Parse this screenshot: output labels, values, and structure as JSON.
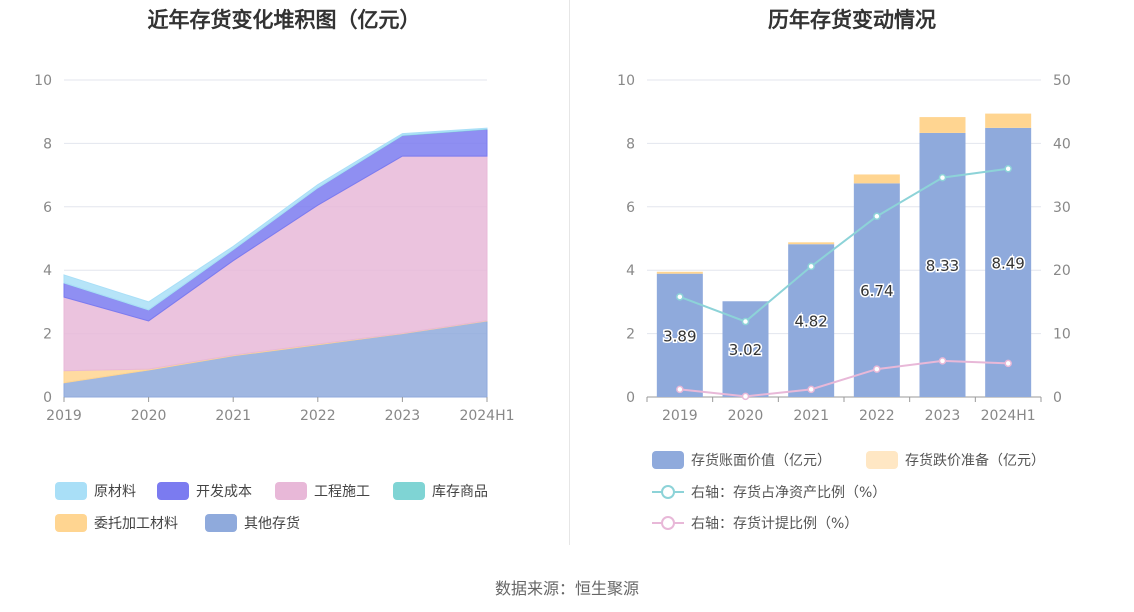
{
  "source": "数据来源：恒生聚源",
  "chart_data": [
    {
      "type": "area",
      "stacked": true,
      "title": "近年存货变化堆积图（亿元）",
      "categories": [
        "2019",
        "2020",
        "2021",
        "2022",
        "2023",
        "2024H1"
      ],
      "y_ticks": [
        "0",
        "2",
        "4",
        "6",
        "8",
        "10"
      ],
      "ylim": [
        0,
        10
      ],
      "grid": true,
      "legend_position": "bottom",
      "series": [
        {
          "name": "其他存货",
          "color": "#8FAADC",
          "values": [
            0.45,
            0.85,
            1.3,
            1.65,
            2.0,
            2.4
          ]
        },
        {
          "name": "委托加工材料",
          "color": "#FFD591",
          "values": [
            0.38,
            0.03,
            0.02,
            0.02,
            0.01,
            0.01
          ]
        },
        {
          "name": "工程施工",
          "color": "#E8B8D8",
          "values": [
            2.32,
            1.52,
            2.98,
            4.38,
            5.59,
            5.19
          ]
        },
        {
          "name": "开发成本",
          "color": "#7B7BF0",
          "values": [
            0.45,
            0.35,
            0.35,
            0.55,
            0.65,
            0.85
          ]
        },
        {
          "name": "库存商品",
          "color": "#7FD4D4",
          "values": [
            0.0,
            0.0,
            0.0,
            0.0,
            0.01,
            0.01
          ]
        },
        {
          "name": "原材料",
          "color": "#A9DFF7",
          "values": [
            0.25,
            0.25,
            0.1,
            0.1,
            0.05,
            0.02
          ]
        }
      ],
      "legend": [
        {
          "name": "原材料",
          "color": "#A9DFF7"
        },
        {
          "name": "开发成本",
          "color": "#7B7BF0"
        },
        {
          "name": "工程施工",
          "color": "#E8B8D8"
        },
        {
          "name": "库存商品",
          "color": "#7FD4D4"
        },
        {
          "name": "委托加工材料",
          "color": "#FFD591"
        },
        {
          "name": "其他存货",
          "color": "#8FAADC"
        }
      ]
    },
    {
      "type": "bar",
      "stacked": true,
      "title": "历年存货变动情况",
      "categories": [
        "2019",
        "2020",
        "2021",
        "2022",
        "2023",
        "2024H1"
      ],
      "y_ticks": [
        "0",
        "2",
        "4",
        "6",
        "8",
        "10"
      ],
      "y2_ticks": [
        "0",
        "10",
        "20",
        "30",
        "40",
        "50"
      ],
      "ylim": [
        0,
        10
      ],
      "y2lim": [
        0,
        50
      ],
      "grid": true,
      "legend_position": "bottom",
      "series": [
        {
          "name": "存货账面价值（亿元）",
          "color": "#8FAADC",
          "values": [
            3.89,
            3.02,
            4.82,
            6.74,
            8.33,
            8.49
          ],
          "labels": [
            "3.89",
            "3.02",
            "4.82",
            "6.74",
            "8.33",
            "8.49"
          ]
        },
        {
          "name": "存货跌价准备（亿元）",
          "color": "#FFD591",
          "values": [
            0.06,
            0.0,
            0.06,
            0.28,
            0.5,
            0.45
          ]
        }
      ],
      "lines": [
        {
          "name": "右轴：存货占净资产比例（%）",
          "color": "#8DD3D8",
          "axis": "right",
          "values": [
            15.8,
            11.9,
            20.6,
            28.5,
            34.6,
            36.0
          ]
        },
        {
          "name": "右轴：存货计提比例（%）",
          "color": "#E8B8D8",
          "axis": "right",
          "values": [
            1.2,
            0.1,
            1.2,
            4.4,
            5.7,
            5.3
          ]
        }
      ]
    }
  ]
}
